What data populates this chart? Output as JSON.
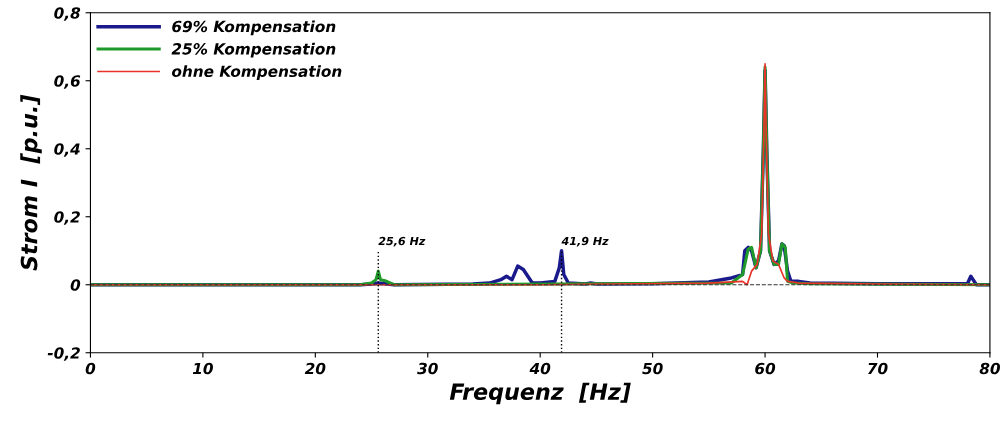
{
  "chart_data": {
    "type": "line",
    "xlabel": "Frequenz  [Hz]",
    "ylabel": "Strom I  [p.u.]",
    "xlim": [
      0,
      80
    ],
    "ylim": [
      -0.2,
      0.8
    ],
    "xticks": [
      0,
      10,
      20,
      30,
      40,
      50,
      60,
      70,
      80
    ],
    "yticks": [
      {
        "value": -0.2,
        "label": "-0,2"
      },
      {
        "value": 0,
        "label": "0"
      },
      {
        "value": 0.2,
        "label": "0,2"
      },
      {
        "value": 0.4,
        "label": "0,4"
      },
      {
        "value": 0.6,
        "label": "0,6"
      },
      {
        "value": 0.8,
        "label": "0,8"
      }
    ],
    "legend": "top left",
    "grid": false,
    "marker": "none",
    "line_style": "solid",
    "series": [
      {
        "name": "69% Kompensation",
        "color": "#1a1a8c",
        "x": [
          0,
          24,
          25,
          25.6,
          26.2,
          27,
          34,
          35.5,
          36.5,
          37,
          37.5,
          38,
          38.5,
          39.3,
          40,
          41.3,
          41.7,
          41.9,
          42.1,
          42.5,
          44,
          44.5,
          45,
          50,
          55,
          57,
          58,
          58.2,
          58.5,
          58.8,
          59.2,
          59.6,
          59.85,
          60,
          60.15,
          60.4,
          60.8,
          61.2,
          61.5,
          61.7,
          62,
          62.3,
          63,
          64,
          70,
          78,
          78.3,
          78.5,
          78.8,
          80
        ],
        "values": [
          0,
          0,
          0.002,
          0.005,
          0.003,
          0,
          0.002,
          0.005,
          0.015,
          0.025,
          0.015,
          0.055,
          0.045,
          0.005,
          0.005,
          0.01,
          0.05,
          0.1,
          0.03,
          0.005,
          0.002,
          0.005,
          0.002,
          0.003,
          0.008,
          0.02,
          0.03,
          0.1,
          0.11,
          0.1,
          0.05,
          0.1,
          0.4,
          0.63,
          0.4,
          0.1,
          0.06,
          0.07,
          0.12,
          0.115,
          0.04,
          0.01,
          0.01,
          0.005,
          0.003,
          0.003,
          0.025,
          0.015,
          0,
          0
        ]
      },
      {
        "name": "25% Kompensation",
        "color": "#1f9a2a",
        "x": [
          0,
          24,
          25,
          25.4,
          25.6,
          25.8,
          26.2,
          27,
          57,
          58,
          58.5,
          58.8,
          59.2,
          59.6,
          59.85,
          60,
          60.15,
          60.4,
          60.8,
          61.2,
          61.5,
          61.8,
          62,
          62.5,
          64,
          80
        ],
        "values": [
          0,
          0,
          0.005,
          0.015,
          0.04,
          0.015,
          0.012,
          0,
          0.005,
          0.03,
          0.105,
          0.11,
          0.05,
          0.1,
          0.4,
          0.64,
          0.4,
          0.1,
          0.06,
          0.06,
          0.12,
          0.11,
          0.01,
          0.005,
          0.003,
          0
        ]
      },
      {
        "name": "ohne Kompensation",
        "color": "#e8332a",
        "x": [
          0,
          40,
          55,
          58,
          58.4,
          58.8,
          59.3,
          59.7,
          59.9,
          60,
          60.1,
          60.3,
          60.7,
          61.2,
          61.7,
          62,
          63,
          70,
          80
        ],
        "values": [
          0,
          0,
          0.005,
          0.01,
          0,
          0.04,
          0.06,
          0.15,
          0.45,
          0.65,
          0.45,
          0.15,
          0.07,
          0.06,
          0.02,
          0.01,
          0.005,
          0.002,
          0
        ]
      }
    ],
    "ref_lines": [
      {
        "axis": "y",
        "value": 0,
        "color": "#333333",
        "line_style": "dashed"
      },
      {
        "axis": "x",
        "value": 25.6,
        "label": "25,6 Hz",
        "color": "#000000",
        "line_style": "dotted"
      },
      {
        "axis": "x",
        "value": 41.9,
        "label": "41,9 Hz",
        "color": "#000000",
        "line_style": "dotted"
      }
    ]
  }
}
